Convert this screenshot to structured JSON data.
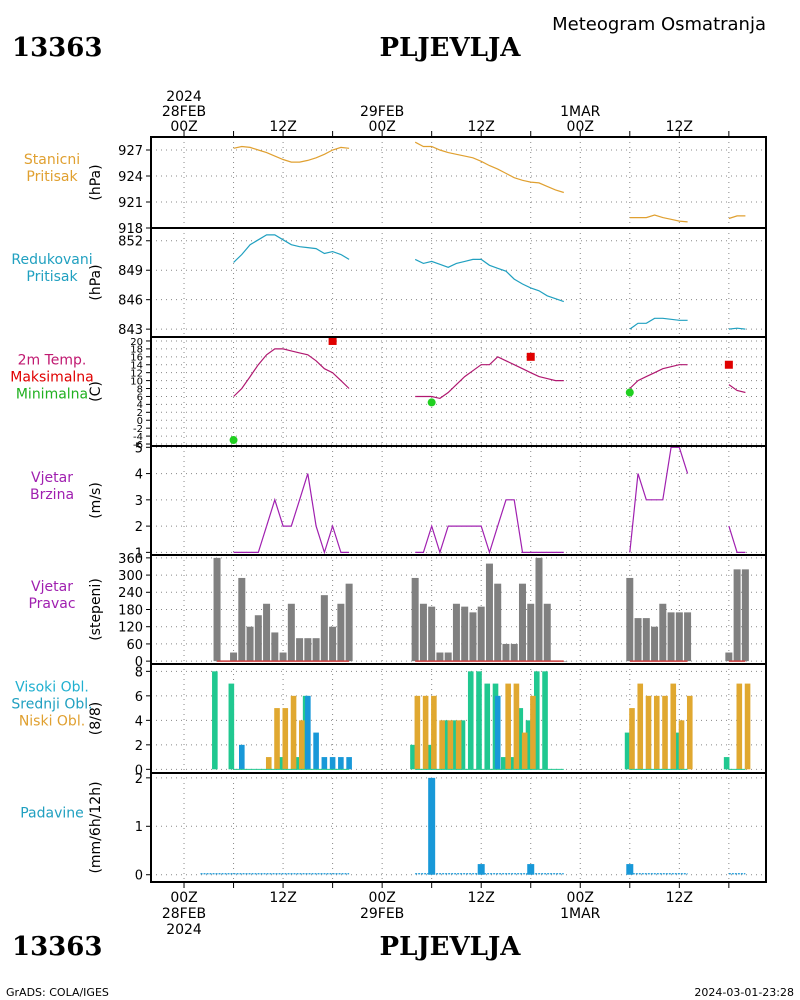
{
  "header": {
    "station_id": "13363",
    "station_name": "PLJEVLJA",
    "title": "Meteogram Osmatranja"
  },
  "footer": {
    "station_id": "13363",
    "station_name": "PLJEVLJA",
    "credit": "GrADS: COLA/IGES",
    "timestamp": "2024-03-01-23:28"
  },
  "time_axis": {
    "top_labels": [
      {
        "h": 0,
        "lines": [
          "2024",
          "28FEB",
          "00Z"
        ]
      },
      {
        "h": 12,
        "lines": [
          "12Z"
        ]
      },
      {
        "h": 24,
        "lines": [
          "29FEB",
          "00Z"
        ]
      },
      {
        "h": 36,
        "lines": [
          "12Z"
        ]
      },
      {
        "h": 48,
        "lines": [
          "1MAR",
          "00Z"
        ]
      },
      {
        "h": 60,
        "lines": [
          "12Z"
        ]
      }
    ],
    "bottom_labels": [
      {
        "h": 0,
        "lines": [
          "00Z",
          "28FEB",
          "2024"
        ]
      },
      {
        "h": 12,
        "lines": [
          "12Z"
        ]
      },
      {
        "h": 24,
        "lines": [
          "00Z",
          "29FEB"
        ]
      },
      {
        "h": 36,
        "lines": [
          "12Z"
        ]
      },
      {
        "h": 48,
        "lines": [
          "00Z",
          "1MAR"
        ]
      },
      {
        "h": 60,
        "lines": [
          "12Z"
        ]
      }
    ],
    "grid_hours": [
      0,
      6,
      12,
      18,
      24,
      30,
      36,
      42,
      48,
      54,
      60,
      66
    ]
  },
  "chart_data": [
    {
      "type": "line",
      "id": "station_pressure",
      "label_lines": [
        "Stanicni",
        "Pritisak"
      ],
      "label_colors": [
        "#e0a030",
        "#e0a030"
      ],
      "ylabel": "(hPa)",
      "ylim": [
        918,
        928.5
      ],
      "yticks": [
        "927",
        "924",
        "921",
        "918"
      ],
      "color": "#e0a030",
      "series": [
        {
          "h": [
            6,
            7,
            8,
            9,
            10,
            11,
            12,
            13,
            14,
            15,
            16,
            17,
            18,
            19,
            20
          ],
          "values": [
            927.2,
            927.4,
            927.3,
            927.0,
            926.7,
            926.3,
            925.9,
            925.6,
            925.6,
            925.8,
            926.1,
            926.5,
            927.0,
            927.3,
            927.2
          ]
        },
        {
          "h": [
            28,
            29,
            30,
            31,
            32,
            33,
            34,
            35,
            36,
            37,
            38,
            39,
            40,
            41,
            42,
            43,
            44,
            45,
            46
          ],
          "values": [
            927.9,
            927.4,
            927.4,
            927.0,
            926.7,
            926.5,
            926.3,
            926.1,
            925.7,
            925.2,
            924.8,
            924.3,
            923.8,
            923.5,
            923.3,
            923.2,
            922.8,
            922.4,
            922.1
          ]
        },
        {
          "h": [
            54,
            55,
            56,
            57,
            58,
            59,
            60,
            61
          ],
          "values": [
            919.2,
            919.2,
            919.2,
            919.5,
            919.2,
            919.0,
            918.8,
            918.7
          ]
        },
        {
          "h": [
            66,
            67,
            68
          ],
          "values": [
            919.1,
            919.4,
            919.4
          ]
        }
      ]
    },
    {
      "type": "line",
      "id": "reduced_pressure",
      "label_lines": [
        "Redukovani",
        "Pritisak"
      ],
      "label_colors": [
        "#20a0c0",
        "#20a0c0"
      ],
      "ylabel": "(hPa)",
      "ylim": [
        842.2,
        853.3
      ],
      "yticks": [
        "852",
        "849",
        "846",
        "843"
      ],
      "color": "#20a0c0",
      "series": [
        {
          "h": [
            6,
            7,
            8,
            9,
            10,
            11,
            12,
            13,
            14,
            15,
            16,
            17,
            18,
            19,
            20
          ],
          "values": [
            849.8,
            850.6,
            851.6,
            852.1,
            852.6,
            852.6,
            852.1,
            851.6,
            851.4,
            851.3,
            851.2,
            850.7,
            850.9,
            850.6,
            850.1
          ]
        },
        {
          "h": [
            28,
            29,
            30,
            31,
            32,
            33,
            34,
            35,
            36,
            37,
            38,
            39,
            40,
            41,
            42,
            43,
            44,
            45,
            46
          ],
          "values": [
            850.1,
            849.7,
            849.9,
            849.6,
            849.3,
            849.7,
            849.9,
            850.1,
            850.1,
            849.5,
            849.2,
            848.9,
            848.1,
            847.6,
            847.2,
            846.9,
            846.4,
            846.1,
            845.8
          ]
        },
        {
          "h": [
            54,
            55,
            56,
            57,
            58,
            59,
            60,
            61
          ],
          "values": [
            843.0,
            843.6,
            843.6,
            844.1,
            844.1,
            844.0,
            843.9,
            843.9
          ]
        },
        {
          "h": [
            66,
            67,
            68
          ],
          "values": [
            843.0,
            843.1,
            843.0
          ]
        }
      ]
    },
    {
      "type": "line",
      "id": "temperature",
      "label_lines": [
        "2m Temp.",
        "Maksimalna",
        "Minimalna"
      ],
      "label_colors": [
        "#c01870",
        "#e00000",
        "#20b020"
      ],
      "ylabel": "(C)",
      "ylim": [
        -6.5,
        21
      ],
      "yticks": [
        "20",
        "18",
        "16",
        "14",
        "12",
        "10",
        "8",
        "6",
        "4",
        "2",
        "0",
        "-2",
        "-4",
        "-6"
      ],
      "color": "#b01870",
      "series": [
        {
          "h": [
            6,
            7,
            8,
            9,
            10,
            11,
            12,
            13,
            14,
            15,
            16,
            17,
            18,
            19,
            20
          ],
          "values": [
            6.0,
            8.0,
            11.0,
            14.0,
            16.5,
            18.0,
            18.0,
            17.5,
            17.0,
            16.5,
            15.0,
            13.0,
            12.0,
            10.0,
            8.0
          ]
        },
        {
          "h": [
            28,
            29,
            30,
            31,
            32,
            33,
            34,
            35,
            36,
            37,
            38,
            39,
            40,
            41,
            42,
            43,
            44,
            45,
            46
          ],
          "values": [
            6.0,
            6.0,
            6.0,
            5.5,
            7.0,
            9.0,
            11.0,
            12.5,
            14.0,
            14.0,
            16.0,
            15.0,
            14.0,
            13.0,
            12.0,
            11.0,
            10.5,
            10.0,
            10.0
          ]
        },
        {
          "h": [
            54,
            55,
            56,
            57,
            58,
            59,
            60,
            61
          ],
          "values": [
            8.0,
            10.0,
            11.0,
            12.0,
            13.0,
            13.5,
            14.0,
            14.0
          ]
        },
        {
          "h": [
            66,
            67,
            68
          ],
          "values": [
            9.0,
            7.5,
            7.0
          ]
        }
      ],
      "max_points": {
        "h": [
          18,
          42,
          66
        ],
        "values": [
          20.0,
          16.0,
          14.0
        ],
        "color": "#e00000"
      },
      "min_points": {
        "h": [
          6,
          30,
          54
        ],
        "values": [
          -5.0,
          4.5,
          7.0
        ],
        "color": "#20d020"
      }
    },
    {
      "type": "line",
      "id": "wind_speed",
      "label_lines": [
        "Vjetar",
        "Brzina"
      ],
      "label_colors": [
        "#a020b0",
        "#a020b0"
      ],
      "ylabel": "(m/s)",
      "ylim": [
        0.9,
        5.05
      ],
      "yticks": [
        "5",
        "4",
        "3",
        "2",
        "1"
      ],
      "color": "#a020b0",
      "series": [
        {
          "h": [
            6,
            7,
            8,
            9,
            10,
            11,
            12,
            13,
            14,
            15,
            16,
            17,
            18,
            19,
            20
          ],
          "values": [
            1,
            1,
            1,
            1,
            2,
            3,
            2,
            2,
            3,
            4,
            2,
            1,
            2,
            1,
            1
          ]
        },
        {
          "h": [
            28,
            29,
            30,
            31,
            32,
            33,
            34,
            35,
            36,
            37,
            38,
            39,
            40,
            41,
            42,
            43,
            44,
            45,
            46
          ],
          "values": [
            1,
            1,
            2,
            1,
            2,
            2,
            2,
            2,
            2,
            1,
            2,
            3,
            3,
            1,
            1,
            1,
            1,
            1,
            1
          ]
        },
        {
          "h": [
            54,
            55,
            56,
            57,
            58,
            59,
            60,
            61
          ],
          "values": [
            1,
            4,
            3,
            3,
            3,
            5,
            5,
            4
          ]
        },
        {
          "h": [
            66,
            67,
            68
          ],
          "values": [
            2,
            1,
            1
          ]
        }
      ]
    },
    {
      "type": "bar",
      "id": "wind_direction",
      "label_lines": [
        "Vjetar",
        "Pravac"
      ],
      "label_colors": [
        "#a020b0",
        "#a020b0"
      ],
      "ylabel": "(stepeni)",
      "ylim": [
        -10,
        370
      ],
      "yticks": [
        "360",
        "300",
        "240",
        "180",
        "120",
        "60",
        "0"
      ],
      "color": "#808080",
      "series": [
        {
          "h": [
            4,
            6,
            7,
            8,
            9,
            10,
            11,
            12,
            13,
            14,
            15,
            16,
            17,
            18,
            19,
            20
          ],
          "values": [
            360,
            30,
            290,
            120,
            160,
            200,
            100,
            30,
            200,
            80,
            80,
            80,
            230,
            120,
            200,
            270
          ]
        },
        {
          "h": [
            28,
            29,
            30,
            31,
            32,
            33,
            34,
            35,
            36,
            37,
            38,
            39,
            40,
            41,
            42,
            43,
            44,
            45,
            46
          ],
          "values": [
            290,
            200,
            190,
            30,
            30,
            200,
            190,
            170,
            190,
            340,
            270,
            60,
            60,
            270,
            200,
            360,
            200,
            0,
            0
          ]
        },
        {
          "h": [
            54,
            55,
            56,
            57,
            58,
            59,
            60,
            61
          ],
          "values": [
            290,
            150,
            150,
            120,
            200,
            170,
            170,
            170
          ]
        },
        {
          "h": [
            66,
            67,
            68
          ],
          "values": [
            30,
            320,
            320
          ]
        }
      ],
      "baseline_color": "#d04040"
    },
    {
      "type": "bar",
      "id": "cloud_cover",
      "label_lines": [
        "Visoki Obl.",
        "Srednji Obl.",
        "Niski Obl."
      ],
      "label_colors": [
        "#20b0d0",
        "#20a0c0",
        "#e0a030"
      ],
      "ylabel": "(8/8)",
      "ylim": [
        -0.3,
        8.6
      ],
      "yticks": [
        "8",
        "6",
        "4",
        "2",
        "0"
      ],
      "series": [
        {
          "name": "Visoki Obl.",
          "color": "#20c890",
          "h": [
            4,
            6,
            12,
            14,
            15,
            28,
            30,
            32,
            33,
            34,
            35,
            36,
            37,
            38,
            39,
            40,
            41,
            42,
            43,
            44,
            54,
            60,
            66
          ],
          "values": [
            8,
            7,
            1,
            1,
            6,
            2,
            2,
            4,
            4,
            4,
            8,
            8,
            7,
            7,
            1,
            1,
            5,
            4,
            8,
            8,
            3,
            3,
            1
          ]
        },
        {
          "name": "Srednji Obl.",
          "color": "#1898d8",
          "h": [
            7,
            15,
            16,
            17,
            18,
            19,
            20,
            38
          ],
          "values": [
            2,
            6,
            3,
            1,
            1,
            1,
            1,
            6
          ]
        },
        {
          "name": "Niski Obl.",
          "color": "#e0a830",
          "h": [
            10,
            11,
            12,
            13,
            14,
            28,
            29,
            30,
            31,
            32,
            33,
            39,
            40,
            41,
            42,
            54,
            55,
            56,
            57,
            58,
            59,
            60,
            61,
            67,
            68
          ],
          "values": [
            1,
            5,
            5,
            6,
            4,
            6,
            6,
            6,
            4,
            4,
            4,
            7,
            7,
            3,
            6,
            5,
            7,
            6,
            6,
            6,
            7,
            4,
            6,
            7,
            7
          ]
        }
      ]
    },
    {
      "type": "bar",
      "id": "precipitation",
      "label_lines": [
        "Padavine"
      ],
      "label_colors": [
        "#20a0c0"
      ],
      "ylabel": "(mm/6h/12h)",
      "ylim": [
        -0.15,
        2.1
      ],
      "yticks": [
        "2",
        "1",
        "0"
      ],
      "color": "#1898d8",
      "series": [
        {
          "h": [
            30,
            36,
            42,
            54
          ],
          "values": [
            2.0,
            0.22,
            0.22,
            0.22
          ]
        }
      ],
      "trace_segments": [
        [
          2,
          20
        ],
        [
          28,
          46
        ],
        [
          54,
          61
        ],
        [
          66,
          68
        ]
      ]
    }
  ]
}
